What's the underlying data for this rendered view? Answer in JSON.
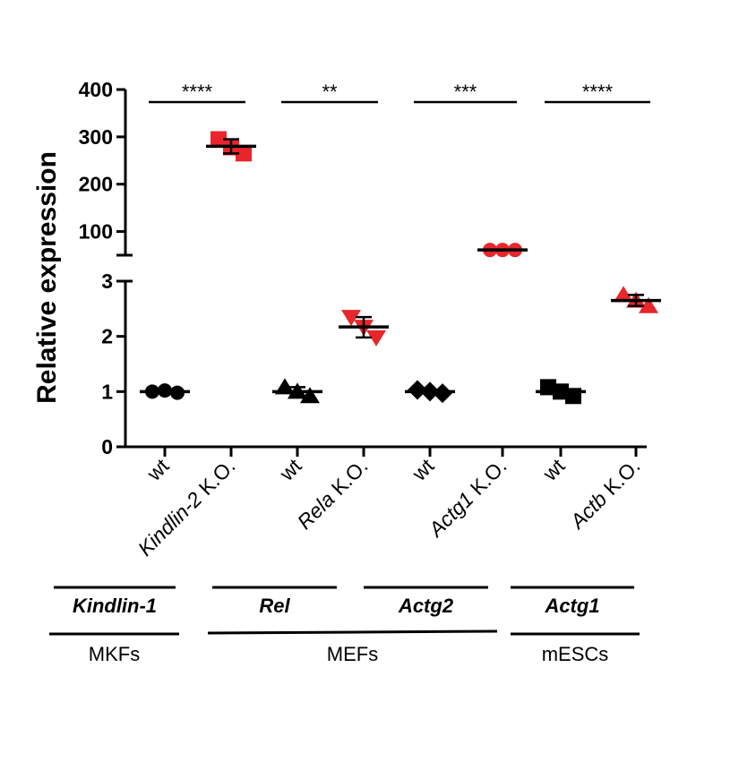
{
  "chart_data": {
    "type": "scatter",
    "ylabel": "Relative expression",
    "y_axis": {
      "broken": true,
      "lower_range": [
        0,
        3
      ],
      "upper_range": [
        50,
        400
      ],
      "lower_ticks": [
        "0",
        "1",
        "2",
        "3"
      ],
      "upper_ticks": [
        "100",
        "200",
        "300",
        "400"
      ]
    },
    "categories": [
      "wt",
      "Kindlin-2 K.O.",
      "wt",
      "Rela K.O.",
      "wt",
      "Actg1 K.O.",
      "wt",
      "Actb K.O."
    ],
    "groups": [
      {
        "label": "wt",
        "italic_part": "",
        "color": "#000000",
        "marker": "circle",
        "mean": 1.0,
        "points": [
          1.0,
          1.02,
          0.98
        ]
      },
      {
        "label": " K.O.",
        "italic_part": "Kindlin-2",
        "color": "#e8262b",
        "marker": "square",
        "mean": 280,
        "points": [
          295,
          278,
          265
        ]
      },
      {
        "label": "wt",
        "italic_part": "",
        "color": "#000000",
        "marker": "triangle-up",
        "mean": 1.0,
        "points": [
          1.08,
          1.0,
          0.92
        ]
      },
      {
        "label": " K.O.",
        "italic_part": "Rela",
        "color": "#e8262b",
        "marker": "triangle-down",
        "mean": 2.17,
        "points": [
          2.35,
          2.17,
          1.98
        ]
      },
      {
        "label": "wt",
        "italic_part": "",
        "color": "#000000",
        "marker": "diamond",
        "mean": 1.0,
        "points": [
          1.03,
          1.0,
          0.97
        ]
      },
      {
        "label": " K.O.",
        "italic_part": "Actg1",
        "color": "#e8262b",
        "marker": "circle",
        "mean": 61,
        "points": [
          61,
          61,
          61
        ]
      },
      {
        "label": "wt",
        "italic_part": "",
        "color": "#000000",
        "marker": "square",
        "mean": 1.0,
        "points": [
          1.08,
          1.0,
          0.92
        ]
      },
      {
        "label": " K.O.",
        "italic_part": "Actb",
        "color": "#e8262b",
        "marker": "triangle-up",
        "mean": 2.65,
        "points": [
          2.75,
          2.65,
          2.55
        ]
      }
    ],
    "significance": [
      {
        "pair": [
          0,
          1
        ],
        "label": "****"
      },
      {
        "pair": [
          2,
          3
        ],
        "label": "**"
      },
      {
        "pair": [
          4,
          5
        ],
        "label": "***"
      },
      {
        "pair": [
          6,
          7
        ],
        "label": "****"
      }
    ],
    "gene_labels": [
      {
        "text": "Kindlin-1",
        "groups": [
          0,
          1
        ]
      },
      {
        "text": "Rel",
        "groups": [
          2,
          3
        ]
      },
      {
        "text": "Actg2",
        "groups": [
          4,
          5
        ]
      },
      {
        "text": "Actg1",
        "groups": [
          6,
          7
        ]
      }
    ],
    "cell_labels": [
      {
        "text": "MKFs",
        "groups": [
          0,
          1
        ]
      },
      {
        "text": "MEFs",
        "groups": [
          2,
          5
        ]
      },
      {
        "text": "mESCs",
        "groups": [
          6,
          7
        ]
      }
    ]
  }
}
